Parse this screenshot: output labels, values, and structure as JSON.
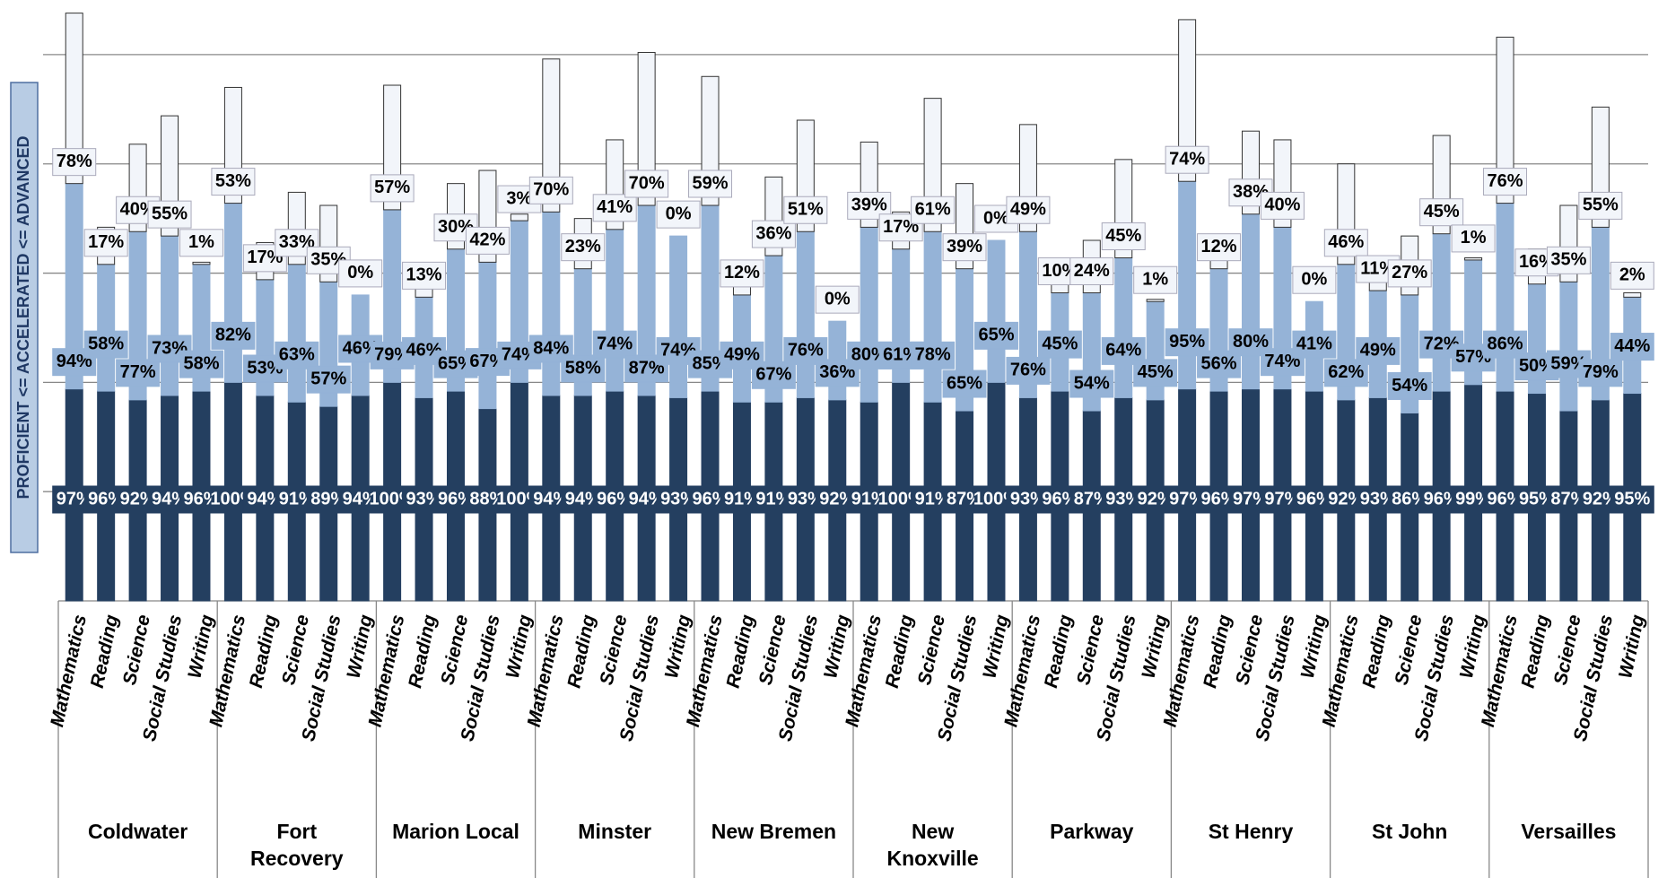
{
  "chart_data": {
    "type": "bar",
    "stacked": true,
    "y_label": "PROFICIENT <=  ACCELERATED <=  ADVANCED",
    "groups": [
      "Coldwater",
      "Fort Recovery",
      "Marion Local",
      "Minster",
      "New Bremen",
      "New Knoxville",
      "Parkway",
      "St Henry",
      "St John",
      "Versailles"
    ],
    "categories": [
      "Mathematics",
      "Reading",
      "Science",
      "Social Studies",
      "Writing",
      "Mathematics",
      "Reading",
      "Science",
      "Social Studies",
      "Writing",
      "Mathematics",
      "Reading",
      "Science",
      "Social Studies",
      "Writing",
      "Mathematics",
      "Reading",
      "Science",
      "Social Studies",
      "Writing",
      "Mathematics",
      "Reading",
      "Science",
      "Social Studies",
      "Writing",
      "Mathematics",
      "Reading",
      "Science",
      "Social Studies",
      "Writing",
      "Mathematics",
      "Reading",
      "Science",
      "Social Studies",
      "Writing",
      "Mathematics",
      "Reading",
      "Science",
      "Social Studies",
      "Writing",
      "Mathematics",
      "Reading",
      "Science",
      "Social Studies",
      "Writing",
      "Mathematics",
      "Reading",
      "Science",
      "Social Studies",
      "Writing"
    ],
    "series": [
      {
        "color": "#243f60",
        "values": [
          97,
          96,
          92,
          94,
          96,
          100,
          94,
          91,
          89,
          94,
          100,
          93,
          96,
          88,
          100,
          94,
          94,
          96,
          94,
          93,
          96,
          91,
          91,
          93,
          92,
          91,
          100,
          91,
          87,
          100,
          93,
          96,
          87,
          93,
          92,
          97,
          96,
          97,
          97,
          96,
          92,
          93,
          86,
          96,
          99,
          96,
          95,
          87,
          92,
          95
        ],
        "value_labels": [
          "97%",
          "96%",
          "92%",
          "94%",
          "96%",
          "100%",
          "94%",
          "91%",
          "89%",
          "94%",
          "100%",
          "93%",
          "96%",
          "88%",
          "100%",
          "94%",
          "94%",
          "96%",
          "94%",
          "93%",
          "96%",
          "91%",
          "91%",
          "93%",
          "92%",
          "91%",
          "100%",
          "91%",
          "87%",
          "100%",
          "93%",
          "96%",
          "87%",
          "93%",
          "92%",
          "97%",
          "96%",
          "97%",
          "97%",
          "96%",
          "92%",
          "93%",
          "86%",
          "96%",
          "99%",
          "96%",
          "95%",
          "87%",
          "92%",
          "95%"
        ]
      },
      {
        "color": "#95b3d7",
        "values": [
          94,
          58,
          77,
          73,
          58,
          82,
          53,
          63,
          57,
          46,
          79,
          46,
          65,
          67,
          74,
          84,
          58,
          74,
          87,
          74,
          85,
          49,
          67,
          76,
          36,
          80,
          61,
          78,
          65,
          65,
          76,
          45,
          54,
          64,
          45,
          95,
          56,
          80,
          74,
          41,
          62,
          49,
          54,
          72,
          57,
          86,
          50,
          59,
          79,
          44
        ],
        "value_labels": [
          "94%",
          "58%",
          "77%",
          "73%",
          "58%",
          "82%",
          "53%",
          "63%",
          "57%",
          "46%",
          "79%",
          "46%",
          "65%",
          "67%",
          "74%",
          "84%",
          "58%",
          "74%",
          "87%",
          "74%",
          "85%",
          "49%",
          "67%",
          "76%",
          "36%",
          "80%",
          "61%",
          "78%",
          "65%",
          "65%",
          "76%",
          "45%",
          "54%",
          "64%",
          "45%",
          "95%",
          "56%",
          "80%",
          "74%",
          "41%",
          "62%",
          "49%",
          "54%",
          "72%",
          "57%",
          "86%",
          "50%",
          "59%",
          "79%",
          "44%"
        ]
      },
      {
        "color": "#f2f5fa",
        "values": [
          78,
          17,
          40,
          55,
          1,
          53,
          17,
          33,
          35,
          0,
          57,
          13,
          30,
          42,
          3,
          70,
          23,
          41,
          70,
          0,
          59,
          12,
          36,
          51,
          0,
          39,
          17,
          61,
          39,
          0,
          49,
          10,
          24,
          45,
          1,
          74,
          12,
          38,
          40,
          0,
          46,
          11,
          27,
          45,
          1,
          76,
          16,
          35,
          55,
          2
        ],
        "value_labels": [
          "78%",
          "17%",
          "40%",
          "55%",
          "1%",
          "53%",
          "17%",
          "33%",
          "35%",
          "0%",
          "57%",
          "13%",
          "30%",
          "42%",
          "3%",
          "70%",
          "23%",
          "41%",
          "70%",
          "0%",
          "59%",
          "12%",
          "36%",
          "51%",
          "0%",
          "39%",
          "17%",
          "61%",
          "39%",
          "0%",
          "49%",
          "10%",
          "24%",
          "45%",
          "1%",
          "74%",
          "12%",
          "38%",
          "40%",
          "0%",
          "46%",
          "11%",
          "27%",
          "45%",
          "1%",
          "76%",
          "16%",
          "35%",
          "55%",
          "2%"
        ]
      }
    ],
    "ylim": [
      0,
      275
    ],
    "yticks": [
      50,
      100,
      150,
      200,
      250
    ],
    "grid": true
  }
}
